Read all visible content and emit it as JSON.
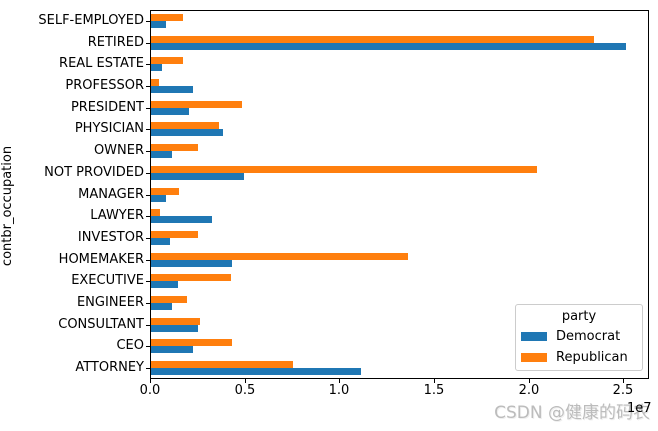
{
  "watermark": {
    "text": "CSDN @健康的码农"
  },
  "chart_data": {
    "type": "bar",
    "orientation": "horizontal",
    "title": "",
    "xlabel": "",
    "ylabel": "contbr_occupation",
    "x_offset_label": "1e7",
    "xlim": [
      0,
      26360000
    ],
    "grid": false,
    "legend": {
      "title": "party",
      "position": "lower right"
    },
    "x_ticks": {
      "labels": [
        "0.0",
        "0.5",
        "1.0",
        "1.5",
        "2.0",
        "2.5"
      ],
      "values": [
        0,
        5000000,
        10000000,
        15000000,
        20000000,
        25000000
      ]
    },
    "categories": [
      "SELF-EMPLOYED",
      "RETIRED",
      "REAL ESTATE",
      "PROFESSOR",
      "PRESIDENT",
      "PHYSICIAN",
      "OWNER",
      "NOT PROVIDED",
      "MANAGER",
      "LAWYER",
      "INVESTOR",
      "HOMEMAKER",
      "EXECUTIVE",
      "ENGINEER",
      "CONSULTANT",
      "CEO",
      "ATTORNEY"
    ],
    "series": [
      {
        "name": "Democrat",
        "color": "#1f77b4",
        "values": [
          800000,
          25100000,
          600000,
          2200000,
          2000000,
          3800000,
          1100000,
          4900000,
          800000,
          3200000,
          1000000,
          4300000,
          1400000,
          1100000,
          2500000,
          2200000,
          11100000
        ]
      },
      {
        "name": "Republican",
        "color": "#ff7f0e",
        "values": [
          1700000,
          23400000,
          1700000,
          400000,
          4800000,
          3600000,
          2500000,
          20400000,
          1500000,
          500000,
          2500000,
          13600000,
          4200000,
          1900000,
          2600000,
          4300000,
          7500000
        ]
      }
    ],
    "group_order_top_to_bottom": [
      "Republican",
      "Democrat"
    ]
  }
}
